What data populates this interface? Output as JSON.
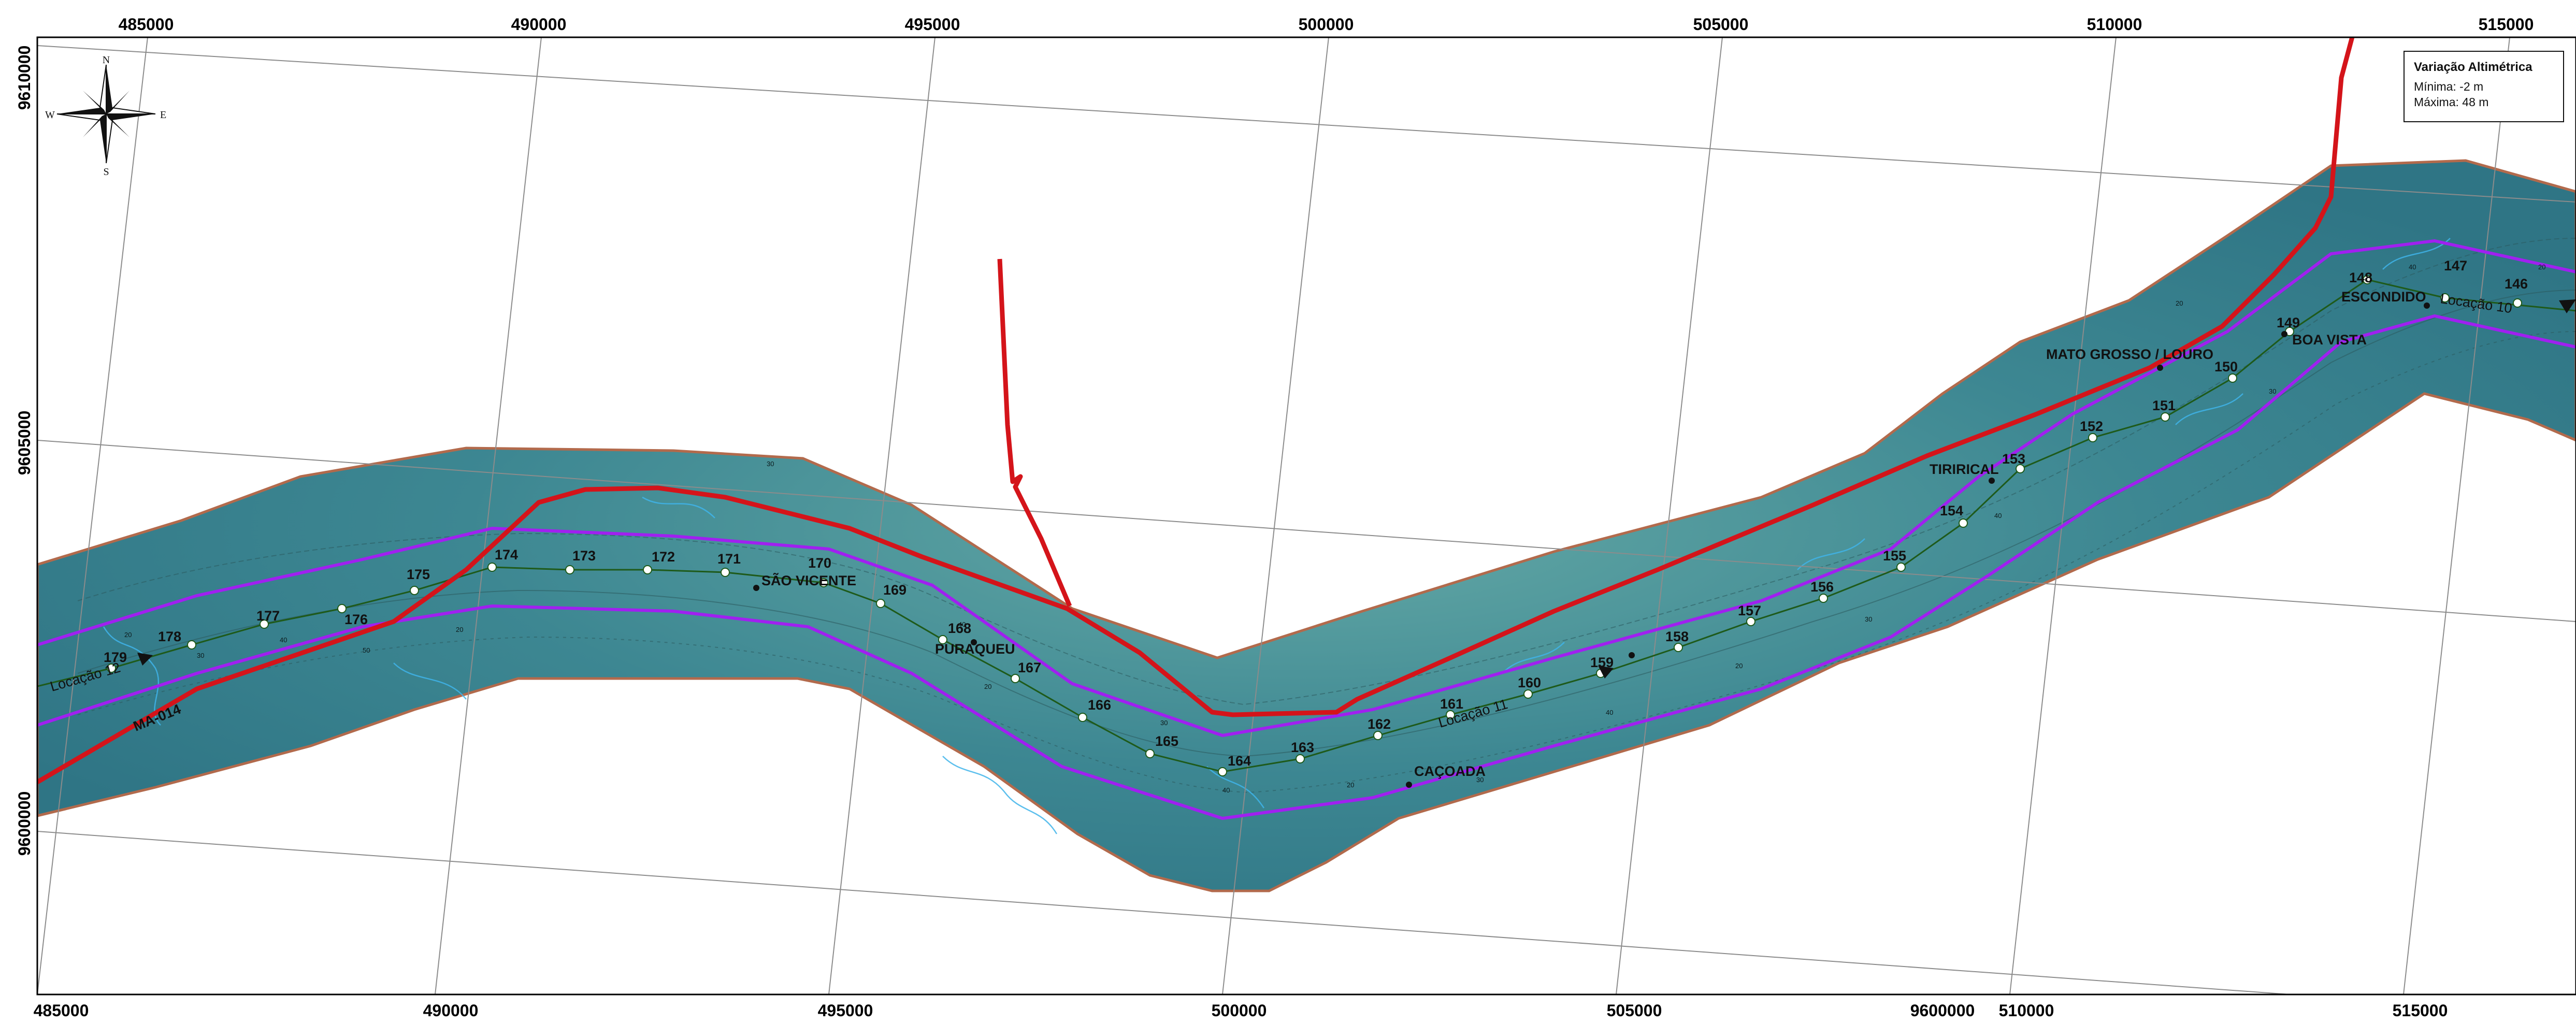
{
  "legend": {
    "title": "Variação Altimétrica",
    "min_label": "Mínima: -2 m",
    "max_label": "Máxima: 48 m"
  },
  "compass": {
    "icon": "compass-rose-icon",
    "n": "N",
    "s": "S",
    "e": "E",
    "w": "W"
  },
  "axes": {
    "top": [
      "485000",
      "490000",
      "495000",
      "500000",
      "505000",
      "510000",
      "515000"
    ],
    "bottom": [
      "485000",
      "490000",
      "495000",
      "500000",
      "505000",
      "9600000",
      "510000",
      "515000"
    ],
    "left": [
      "9610000",
      "9605000",
      "9600000"
    ]
  },
  "stations": [
    "179",
    "178",
    "177",
    "176",
    "175",
    "174",
    "173",
    "172",
    "171",
    "170",
    "169",
    "168",
    "167",
    "166",
    "165",
    "164",
    "163",
    "162",
    "161",
    "160",
    "159",
    "158",
    "157",
    "156",
    "155",
    "154",
    "153",
    "152",
    "151",
    "150",
    "149",
    "148",
    "147",
    "146"
  ],
  "places": [
    "SÃO VICENTE",
    "PURAQUEU",
    "CAÇOADA",
    "TIRIRICAL",
    "MATO GROSSO / LOURO",
    "ESCONDIDO",
    "BOA VISTA"
  ],
  "locacoes": [
    "Locação 12",
    "Locação 11",
    "Locação 10"
  ],
  "road": "MA-014",
  "contour_labels": [
    "20",
    "30",
    "40",
    "50",
    "20",
    "30",
    "40",
    "20",
    "30",
    "40",
    "20",
    "30",
    "40",
    "20",
    "30",
    "40",
    "20",
    "30",
    "40",
    "20"
  ],
  "colors": {
    "water": "#3e8a92",
    "border": "#b26a4c",
    "centerline": "#1e5a1a",
    "offset": "#a020f0",
    "road": "#d4141a",
    "grid": "#8c8c8c"
  }
}
